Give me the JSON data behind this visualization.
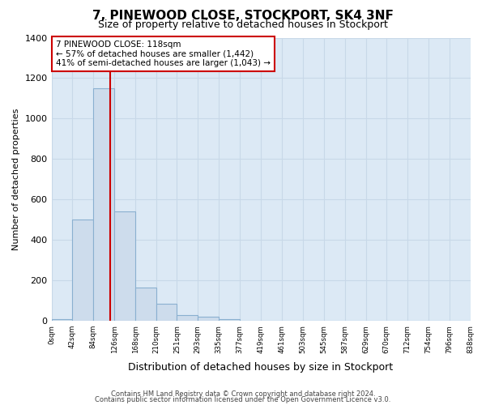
{
  "title": "7, PINEWOOD CLOSE, STOCKPORT, SK4 3NF",
  "subtitle": "Size of property relative to detached houses in Stockport",
  "xlabel": "Distribution of detached houses by size in Stockport",
  "ylabel": "Number of detached properties",
  "bar_edges": [
    0,
    42,
    84,
    126,
    168,
    210,
    251,
    293,
    335,
    377,
    419,
    461,
    503,
    545,
    587,
    629,
    670,
    712,
    754,
    796,
    838
  ],
  "bar_heights": [
    10,
    500,
    1150,
    540,
    165,
    85,
    30,
    20,
    10,
    0,
    0,
    0,
    0,
    0,
    0,
    0,
    0,
    0,
    0,
    0
  ],
  "bar_color": "#cddcec",
  "bar_edge_color": "#8ab0d0",
  "property_line_x": 118,
  "property_line_color": "#cc0000",
  "annotation_line1": "7 PINEWOOD CLOSE: 118sqm",
  "annotation_line2": "← 57% of detached houses are smaller (1,442)",
  "annotation_line3": "41% of semi-detached houses are larger (1,043) →",
  "annotation_box_color": "#ffffff",
  "annotation_box_edge_color": "#cc0000",
  "ylim": [
    0,
    1400
  ],
  "yticks": [
    0,
    200,
    400,
    600,
    800,
    1000,
    1200,
    1400
  ],
  "tick_labels": [
    "0sqm",
    "42sqm",
    "84sqm",
    "126sqm",
    "168sqm",
    "210sqm",
    "251sqm",
    "293sqm",
    "335sqm",
    "377sqm",
    "419sqm",
    "461sqm",
    "503sqm",
    "545sqm",
    "587sqm",
    "629sqm",
    "670sqm",
    "712sqm",
    "754sqm",
    "796sqm",
    "838sqm"
  ],
  "footer_line1": "Contains HM Land Registry data © Crown copyright and database right 2024.",
  "footer_line2": "Contains public sector information licensed under the Open Government Licence v3.0.",
  "grid_color": "#c8d8e8",
  "fig_bg_color": "#ffffff",
  "plot_bg_color": "#dce9f5"
}
